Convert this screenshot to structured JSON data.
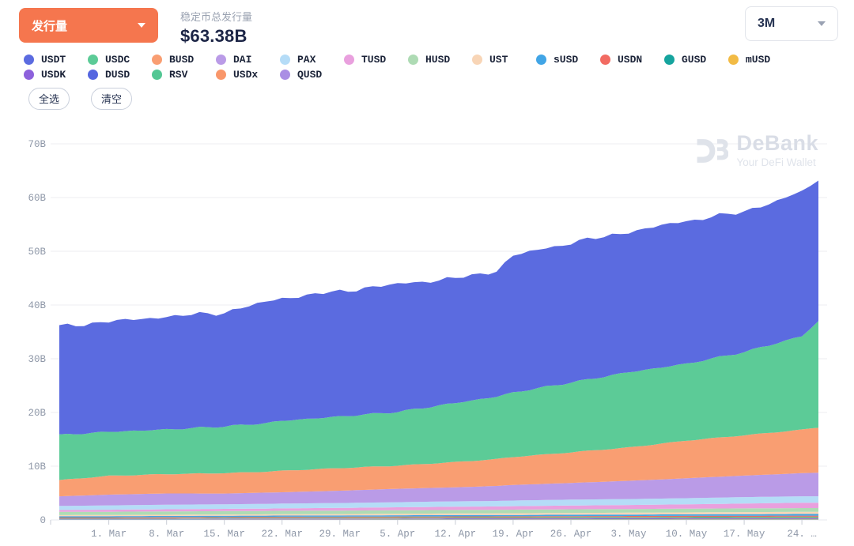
{
  "header": {
    "metric_button_label": "发行量",
    "title_label": "稳定币总发行量",
    "title_value": "$63.38B",
    "range_value": "3M"
  },
  "actions": {
    "select_all": "全选",
    "clear": "清空"
  },
  "watermark": {
    "name": "DeBank",
    "tagline": "Your DeFi Wallet"
  },
  "chart_data": {
    "type": "area",
    "stacked": true,
    "title": "稳定币总发行量",
    "total_value": "$63.38B",
    "unit": "B (USD billions)",
    "ylim": [
      0,
      70
    ],
    "y_tick_labels": [
      "0",
      "10B",
      "20B",
      "30B",
      "40B",
      "50B",
      "60B",
      "70B"
    ],
    "x_days": [
      0,
      6,
      13,
      20,
      25,
      27,
      34,
      41,
      48,
      53,
      55,
      62,
      69,
      76,
      83,
      90,
      92
    ],
    "x_tick_days": [
      6,
      13,
      20,
      27,
      34,
      41,
      48,
      55,
      62,
      69,
      76,
      83,
      90
    ],
    "x_tick_labels": [
      "1. Mar",
      "8. Mar",
      "15. Mar",
      "22. Mar",
      "29. Mar",
      "5. Apr",
      "12. Apr",
      "19. Apr",
      "26. Apr",
      "3. May",
      "10. May",
      "17. May",
      "24. …"
    ],
    "grid": true,
    "legend_position": "top",
    "series": [
      {
        "name": "USDT",
        "color": "#5b6be0",
        "values": [
          20.2,
          20.5,
          21.0,
          21.2,
          22.6,
          22.8,
          23.3,
          23.8,
          23.2,
          23.4,
          25.5,
          26.0,
          26.1,
          26.6,
          26.1,
          26.8,
          26.4
        ]
      },
      {
        "name": "USDC",
        "color": "#5ccb97",
        "values": [
          8.4,
          8.2,
          8.3,
          8.7,
          9.0,
          9.3,
          9.6,
          10.0,
          11.0,
          11.6,
          12.0,
          13.0,
          14.0,
          14.3,
          15.5,
          17.4,
          19.8
        ]
      },
      {
        "name": "BUSD",
        "color": "#f99e72",
        "values": [
          3.0,
          3.5,
          3.6,
          3.8,
          3.9,
          4.0,
          4.2,
          4.3,
          4.7,
          5.0,
          5.2,
          5.7,
          6.2,
          7.0,
          7.5,
          8.1,
          8.4
        ]
      },
      {
        "name": "DAI",
        "color": "#ba9be7",
        "values": [
          1.8,
          2.0,
          2.1,
          2.0,
          2.1,
          2.1,
          2.3,
          2.5,
          2.6,
          2.8,
          2.9,
          3.1,
          3.4,
          3.7,
          4.0,
          4.3,
          4.4
        ]
      },
      {
        "name": "PAX",
        "color": "#b5dcf7",
        "values": [
          0.75,
          0.8,
          0.85,
          0.85,
          0.88,
          0.9,
          0.9,
          0.95,
          1.0,
          1.02,
          1.05,
          1.1,
          1.1,
          1.15,
          1.2,
          1.2,
          1.2
        ]
      },
      {
        "name": "TUSD",
        "color": "#e9a0de",
        "values": [
          0.35,
          0.38,
          0.4,
          0.42,
          0.44,
          0.45,
          0.5,
          0.55,
          0.6,
          0.62,
          0.65,
          0.7,
          0.75,
          0.8,
          0.9,
          1.0,
          1.0
        ]
      },
      {
        "name": "HUSD",
        "color": "#aedbb4",
        "values": [
          0.6,
          0.6,
          0.62,
          0.63,
          0.63,
          0.64,
          0.65,
          0.65,
          0.66,
          0.66,
          0.67,
          0.68,
          0.68,
          0.7,
          0.7,
          0.7,
          0.7
        ]
      },
      {
        "name": "UST",
        "color": "#f8d5b6",
        "values": [
          0.2,
          0.21,
          0.22,
          0.23,
          0.24,
          0.25,
          0.26,
          0.28,
          0.3,
          0.31,
          0.32,
          0.33,
          0.35,
          0.36,
          0.38,
          0.4,
          0.4
        ]
      },
      {
        "name": "sUSD",
        "color": "#41a5e6",
        "values": [
          0.18,
          0.19,
          0.2,
          0.2,
          0.21,
          0.21,
          0.22,
          0.23,
          0.24,
          0.25,
          0.25,
          0.26,
          0.27,
          0.28,
          0.29,
          0.3,
          0.3
        ]
      },
      {
        "name": "USDN",
        "color": "#f26b62",
        "values": [
          0.12,
          0.12,
          0.13,
          0.13,
          0.13,
          0.14,
          0.14,
          0.15,
          0.15,
          0.16,
          0.16,
          0.17,
          0.18,
          0.18,
          0.19,
          0.2,
          0.2
        ]
      },
      {
        "name": "GUSD",
        "color": "#16a49e",
        "values": [
          0.1,
          0.1,
          0.1,
          0.11,
          0.11,
          0.11,
          0.11,
          0.12,
          0.12,
          0.12,
          0.12,
          0.13,
          0.13,
          0.14,
          0.14,
          0.15,
          0.15
        ]
      },
      {
        "name": "mUSD",
        "color": "#f2bb45",
        "values": [
          0.08,
          0.08,
          0.09,
          0.09,
          0.09,
          0.09,
          0.1,
          0.1,
          0.1,
          0.1,
          0.1,
          0.11,
          0.11,
          0.11,
          0.12,
          0.12,
          0.12
        ]
      },
      {
        "name": "USDK",
        "color": "#8d61dc",
        "values": [
          0.07,
          0.07,
          0.07,
          0.08,
          0.08,
          0.08,
          0.08,
          0.08,
          0.09,
          0.09,
          0.09,
          0.09,
          0.09,
          0.1,
          0.1,
          0.1,
          0.1
        ]
      },
      {
        "name": "DUSD",
        "color": "#5566e0",
        "values": [
          0.05,
          0.05,
          0.05,
          0.06,
          0.06,
          0.06,
          0.06,
          0.06,
          0.07,
          0.07,
          0.07,
          0.07,
          0.07,
          0.08,
          0.08,
          0.08,
          0.08
        ]
      },
      {
        "name": "RSV",
        "color": "#53c794",
        "values": [
          0.04,
          0.04,
          0.04,
          0.04,
          0.05,
          0.05,
          0.05,
          0.05,
          0.05,
          0.05,
          0.05,
          0.05,
          0.06,
          0.06,
          0.06,
          0.06,
          0.06
        ]
      },
      {
        "name": "USDx",
        "color": "#f9976b",
        "values": [
          0.03,
          0.03,
          0.03,
          0.04,
          0.04,
          0.04,
          0.04,
          0.04,
          0.04,
          0.04,
          0.04,
          0.05,
          0.05,
          0.05,
          0.05,
          0.05,
          0.05
        ]
      },
      {
        "name": "QUSD",
        "color": "#aa8ee4",
        "values": [
          0.03,
          0.03,
          0.03,
          0.03,
          0.03,
          0.03,
          0.03,
          0.04,
          0.04,
          0.04,
          0.04,
          0.04,
          0.04,
          0.04,
          0.04,
          0.04,
          0.04
        ]
      }
    ]
  }
}
